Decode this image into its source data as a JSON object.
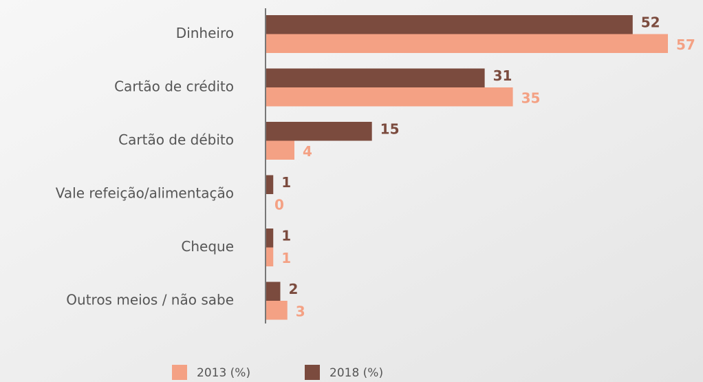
{
  "chart_data": {
    "type": "bar",
    "orientation": "horizontal",
    "categories": [
      "Dinheiro",
      "Cartão de crédito",
      "Cartão de débito",
      "Vale refeição/alimentação",
      "Cheque",
      "Outros meios / não sabe"
    ],
    "series": [
      {
        "name": "2013 (%)",
        "color": "#f4a184",
        "values": [
          57,
          35,
          4,
          0,
          1,
          3
        ]
      },
      {
        "name": "2018 (%)",
        "color": "#7b4b3e",
        "values": [
          52,
          31,
          15,
          1,
          1,
          2
        ]
      }
    ],
    "legend": "bottom"
  }
}
